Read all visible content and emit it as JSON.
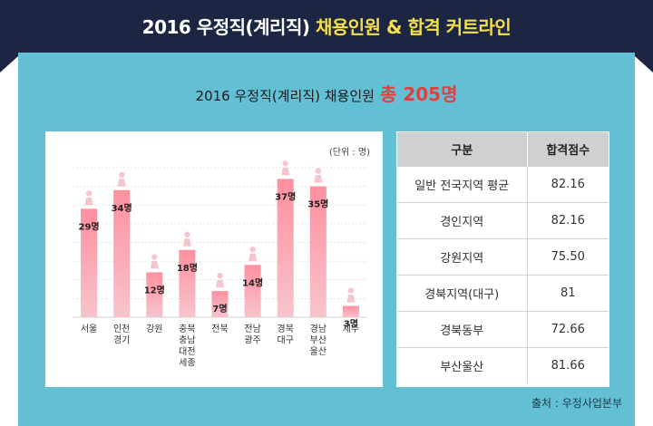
{
  "header": {
    "year": "2016",
    "title_mid": " 우정직(계리직) ",
    "title_hl1": "채용인원",
    "title_amp": " & ",
    "title_hl2": "합격 커트라인"
  },
  "subtitle": {
    "text": "2016 우정직(계리직) 채용인원",
    "total": "총 205명"
  },
  "unit_label": "(단위 : 명)",
  "chart_data": {
    "type": "bar",
    "categories": [
      "서울",
      "인천\n경기",
      "강원",
      "충북\n충남\n대전\n세종",
      "전북",
      "전남\n광주",
      "경북\n대구",
      "경남\n부산\n울산",
      "제주"
    ],
    "values": [
      29,
      34,
      12,
      18,
      7,
      14,
      37,
      35,
      3
    ],
    "data_labels": [
      "29명",
      "34명",
      "12명",
      "18명",
      "7명",
      "14명",
      "37명",
      "35명",
      "3명"
    ],
    "ylim": [
      0,
      40
    ],
    "grid": true,
    "colors": {
      "bar_top": "#ff8f9f",
      "bar_bottom": "#f7c4cc",
      "icon": "#f6c6cf",
      "grid": "#d0d0d0"
    }
  },
  "table": {
    "headers": [
      "구분",
      "합격점수"
    ],
    "rows": [
      [
        "일반 전국지역 평균",
        "82.16"
      ],
      [
        "경인지역",
        "82.16"
      ],
      [
        "강원지역",
        "75.50"
      ],
      [
        "경북지역(대구)",
        "81"
      ],
      [
        "경북동부",
        "72.66"
      ],
      [
        "부산울산",
        "81.66"
      ]
    ]
  },
  "source": "출처 : 우정사업본부",
  "colors": {
    "header_bg": "#1c2542",
    "panel_bg": "#62bfd4",
    "accent_red": "#e2403f",
    "accent_yellow": "#f4e04d"
  }
}
